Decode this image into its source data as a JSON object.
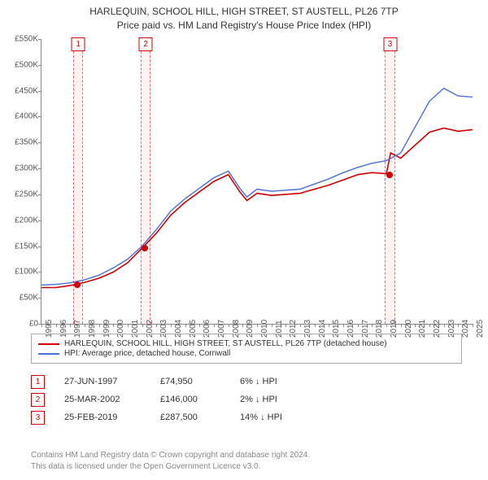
{
  "title_line1": "HARLEQUIN, SCHOOL HILL, HIGH STREET, ST AUSTELL, PL26 7TP",
  "title_line2": "Price paid vs. HM Land Registry's House Price Index (HPI)",
  "chart": {
    "type": "line",
    "background_color": "#ffffff",
    "x_axis": {
      "min": 1995,
      "max": 2025,
      "tick_step": 1,
      "label_fontsize": 10
    },
    "y_axis": {
      "min": 0,
      "max": 550000,
      "tick_step": 50000,
      "prefix": "£",
      "suffix_k": "K",
      "label_fontsize": 10
    },
    "series": [
      {
        "id": "property",
        "label": "HARLEQUIN, SCHOOL HILL, HIGH STREET, ST AUSTELL, PL26 7TP (detached house)",
        "color": "#d00000",
        "line_width": 1.6,
        "data": [
          [
            1995,
            70000
          ],
          [
            1996,
            70000
          ],
          [
            1997,
            74000
          ],
          [
            1998,
            80000
          ],
          [
            1999,
            88000
          ],
          [
            2000,
            100000
          ],
          [
            2001,
            118000
          ],
          [
            2002,
            146000
          ],
          [
            2003,
            175000
          ],
          [
            2004,
            210000
          ],
          [
            2005,
            235000
          ],
          [
            2006,
            255000
          ],
          [
            2007,
            275000
          ],
          [
            2008,
            288000
          ],
          [
            2008.8,
            255000
          ],
          [
            2009.3,
            238000
          ],
          [
            2010,
            252000
          ],
          [
            2011,
            248000
          ],
          [
            2012,
            250000
          ],
          [
            2013,
            252000
          ],
          [
            2014,
            260000
          ],
          [
            2015,
            268000
          ],
          [
            2016,
            278000
          ],
          [
            2017,
            288000
          ],
          [
            2018,
            292000
          ],
          [
            2019,
            290000
          ],
          [
            2019.3,
            330000
          ],
          [
            2020,
            320000
          ],
          [
            2021,
            345000
          ],
          [
            2022,
            370000
          ],
          [
            2023,
            378000
          ],
          [
            2024,
            372000
          ],
          [
            2025,
            375000
          ]
        ]
      },
      {
        "id": "hpi",
        "label": "HPI: Average price, detached house, Cornwall",
        "color": "#4a6fd8",
        "line_width": 1.4,
        "data": [
          [
            1995,
            75000
          ],
          [
            1996,
            76000
          ],
          [
            1997,
            79000
          ],
          [
            1998,
            85000
          ],
          [
            1999,
            94000
          ],
          [
            2000,
            108000
          ],
          [
            2001,
            125000
          ],
          [
            2002,
            150000
          ],
          [
            2003,
            182000
          ],
          [
            2004,
            218000
          ],
          [
            2005,
            242000
          ],
          [
            2006,
            262000
          ],
          [
            2007,
            282000
          ],
          [
            2008,
            295000
          ],
          [
            2008.8,
            262000
          ],
          [
            2009.3,
            245000
          ],
          [
            2010,
            260000
          ],
          [
            2011,
            256000
          ],
          [
            2012,
            258000
          ],
          [
            2013,
            260000
          ],
          [
            2014,
            270000
          ],
          [
            2015,
            280000
          ],
          [
            2016,
            292000
          ],
          [
            2017,
            302000
          ],
          [
            2018,
            310000
          ],
          [
            2019,
            315000
          ],
          [
            2020,
            330000
          ],
          [
            2021,
            380000
          ],
          [
            2022,
            430000
          ],
          [
            2023,
            455000
          ],
          [
            2024,
            440000
          ],
          [
            2025,
            438000
          ]
        ]
      }
    ],
    "markers": [
      {
        "n": "1",
        "x_center": 1997.5,
        "band_width_years": 0.6,
        "date": "27-JUN-1997",
        "price": "£74,950",
        "diff": "6% ↓ HPI",
        "point_y": 74950
      },
      {
        "n": "2",
        "x_center": 2002.2,
        "band_width_years": 0.6,
        "date": "25-MAR-2002",
        "price": "£146,000",
        "diff": "2% ↓ HPI",
        "point_y": 146000
      },
      {
        "n": "3",
        "x_center": 2019.2,
        "band_width_years": 0.6,
        "date": "25-FEB-2019",
        "price": "£287,500",
        "diff": "14% ↓ HPI",
        "point_y": 287500
      }
    ],
    "point_color": "#d00000"
  },
  "footer_line1": "Contains HM Land Registry data © Crown copyright and database right 2024.",
  "footer_line2": "This data is licensed under the Open Government Licence v3.0."
}
